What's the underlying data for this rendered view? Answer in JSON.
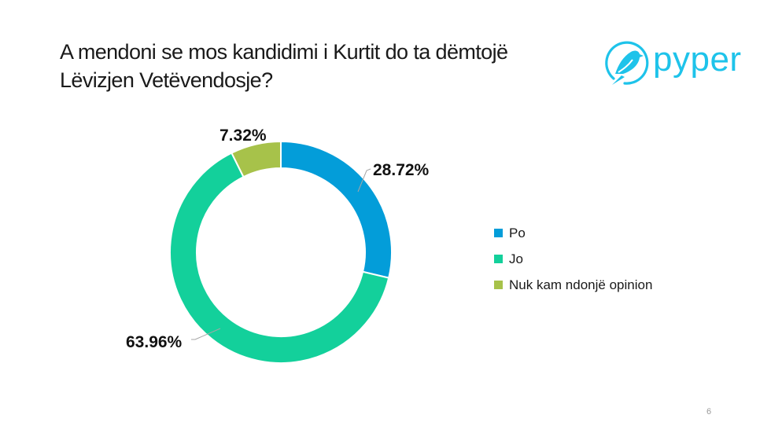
{
  "title": "A mendoni se mos kandidimi i Kurtit do ta dëmtojë Lëvizjen Vetëvendosje?",
  "logo": {
    "text": "pyper",
    "icon": "bird-in-circle-icon",
    "color": "#1ec3ea"
  },
  "page_number": "6",
  "legend": {
    "items": [
      {
        "label": "Po",
        "color": "#039dd9"
      },
      {
        "label": "Jo",
        "color": "#13d09b"
      },
      {
        "label": "Nuk kam ndonjë opinion",
        "color": "#a7c24a"
      }
    ]
  },
  "labels": {
    "po": "28.72%",
    "jo": "63.96%",
    "nuk": "7.32%"
  },
  "chart_data": {
    "type": "pie",
    "subtype": "donut",
    "title": "A mendoni se mos kandidimi i Kurtit do ta dëmtojë Lëvizjen Vetëvendosje?",
    "categories": [
      "Po",
      "Jo",
      "Nuk kam ndonjë opinion"
    ],
    "values": [
      28.72,
      63.96,
      7.32
    ],
    "unit": "%",
    "colors": [
      "#039dd9",
      "#13d09b",
      "#a7c24a"
    ],
    "start_angle": "12 o'clock, clockwise",
    "legend_position": "right",
    "data_labels": [
      "28.72%",
      "63.96%",
      "7.32%"
    ]
  }
}
